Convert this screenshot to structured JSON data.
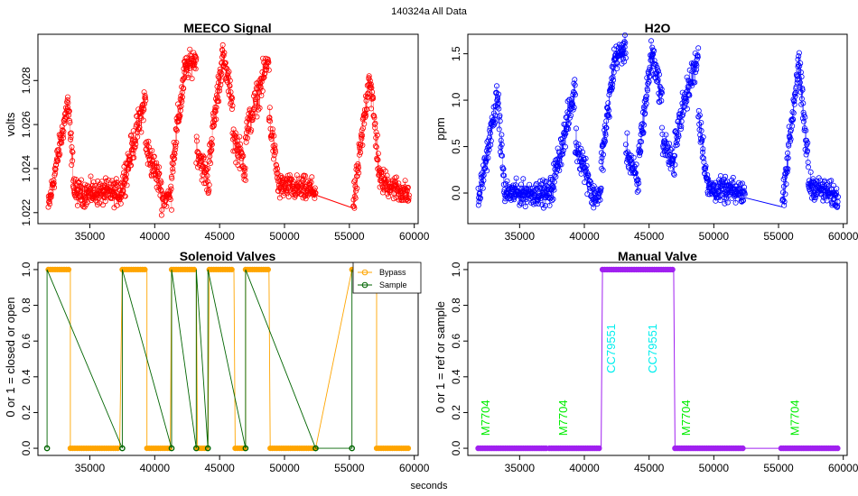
{
  "figure": {
    "title": "140324a   All Data",
    "xlabel": "seconds"
  },
  "chart_data": [
    {
      "id": "meeco",
      "type": "scatter",
      "title": "MEECO Signal",
      "xlabel": "",
      "ylabel": "volts",
      "color": "#ff0000",
      "xlim": [
        31000,
        60300
      ],
      "ylim": [
        1.0215,
        1.0301
      ],
      "xticks": [
        35000,
        40000,
        45000,
        50000,
        55000,
        60000
      ],
      "yticks": [
        1.022,
        1.024,
        1.026,
        1.028
      ],
      "ytick_labels": [
        "1.022",
        "1.024",
        "1.026",
        "1.028"
      ],
      "segments": [
        {
          "x0": 31800,
          "x1": 33300,
          "y0": 1.0222,
          "y1": 1.027,
          "noise": 0.0004,
          "n": 70
        },
        {
          "x0": 33300,
          "x1": 33800,
          "y0": 1.027,
          "y1": 1.0232,
          "noise": 0.0005,
          "n": 22
        },
        {
          "x0": 33800,
          "x1": 37300,
          "y0": 1.0229,
          "y1": 1.0229,
          "noise": 0.0004,
          "n": 150
        },
        {
          "x0": 37300,
          "x1": 39300,
          "y0": 1.0228,
          "y1": 1.0272,
          "noise": 0.0005,
          "n": 90
        },
        {
          "x0": 39300,
          "x1": 40500,
          "y0": 1.025,
          "y1": 1.0232,
          "noise": 0.0005,
          "n": 50
        },
        {
          "x0": 40500,
          "x1": 41300,
          "y0": 1.0226,
          "y1": 1.0228,
          "noise": 0.0004,
          "n": 30
        },
        {
          "x0": 41300,
          "x1": 42300,
          "y0": 1.024,
          "y1": 1.0283,
          "noise": 0.0005,
          "n": 50
        },
        {
          "x0": 42300,
          "x1": 43200,
          "y0": 1.0285,
          "y1": 1.029,
          "noise": 0.0004,
          "n": 45
        },
        {
          "x0": 43200,
          "x1": 44200,
          "y0": 1.025,
          "y1": 1.0232,
          "noise": 0.0005,
          "n": 40
        },
        {
          "x0": 44200,
          "x1": 45200,
          "y0": 1.0245,
          "y1": 1.029,
          "noise": 0.0005,
          "n": 50
        },
        {
          "x0": 45200,
          "x1": 46000,
          "y0": 1.0292,
          "y1": 1.027,
          "noise": 0.0004,
          "n": 35
        },
        {
          "x0": 46000,
          "x1": 47000,
          "y0": 1.0255,
          "y1": 1.024,
          "noise": 0.0005,
          "n": 40
        },
        {
          "x0": 47000,
          "x1": 48800,
          "y0": 1.0255,
          "y1": 1.029,
          "noise": 0.0005,
          "n": 75
        },
        {
          "x0": 48800,
          "x1": 49500,
          "y0": 1.0265,
          "y1": 1.0235,
          "noise": 0.0005,
          "n": 30
        },
        {
          "x0": 49500,
          "x1": 52400,
          "y0": 1.0232,
          "y1": 1.023,
          "noise": 0.0004,
          "n": 120
        },
        {
          "x0": 55300,
          "x1": 56500,
          "y0": 1.0222,
          "y1": 1.028,
          "noise": 0.0005,
          "n": 55
        },
        {
          "x0": 56500,
          "x1": 57300,
          "y0": 1.0285,
          "y1": 1.024,
          "noise": 0.0006,
          "n": 35
        },
        {
          "x0": 57300,
          "x1": 59600,
          "y0": 1.0235,
          "y1": 1.0228,
          "noise": 0.0004,
          "n": 100
        }
      ],
      "bridge": {
        "x": [
          52400,
          55300
        ],
        "y": [
          1.0228,
          1.0222
        ]
      }
    },
    {
      "id": "h2o",
      "type": "scatter",
      "title": "H2O",
      "xlabel": "",
      "ylabel": "ppm",
      "color": "#0000ff",
      "xlim": [
        31000,
        60300
      ],
      "ylim": [
        -0.33,
        1.71
      ],
      "xticks": [
        35000,
        40000,
        45000,
        50000,
        55000,
        60000
      ],
      "yticks": [
        0.0,
        0.5,
        1.0,
        1.5
      ],
      "ytick_labels": [
        "0.0",
        "0.5",
        "1.0",
        "1.5"
      ],
      "segments": [
        {
          "x0": 31800,
          "x1": 33300,
          "y0": -0.1,
          "y1": 1.05,
          "noise": 0.1,
          "n": 70
        },
        {
          "x0": 33300,
          "x1": 33800,
          "y0": 1.05,
          "y1": 0.1,
          "noise": 0.12,
          "n": 22
        },
        {
          "x0": 33800,
          "x1": 37300,
          "y0": 0.0,
          "y1": 0.0,
          "noise": 0.09,
          "n": 150
        },
        {
          "x0": 37300,
          "x1": 39300,
          "y0": -0.05,
          "y1": 1.12,
          "noise": 0.12,
          "n": 90
        },
        {
          "x0": 39300,
          "x1": 40500,
          "y0": 0.55,
          "y1": 0.1,
          "noise": 0.12,
          "n": 50
        },
        {
          "x0": 40500,
          "x1": 41300,
          "y0": -0.05,
          "y1": 0.0,
          "noise": 0.09,
          "n": 30
        },
        {
          "x0": 41300,
          "x1": 42300,
          "y0": 0.3,
          "y1": 1.4,
          "noise": 0.12,
          "n": 50
        },
        {
          "x0": 42300,
          "x1": 43200,
          "y0": 1.45,
          "y1": 1.55,
          "noise": 0.09,
          "n": 45
        },
        {
          "x0": 43200,
          "x1": 44200,
          "y0": 0.5,
          "y1": 0.05,
          "noise": 0.12,
          "n": 40
        },
        {
          "x0": 44200,
          "x1": 45200,
          "y0": 0.4,
          "y1": 1.5,
          "noise": 0.12,
          "n": 50
        },
        {
          "x0": 45200,
          "x1": 46000,
          "y0": 1.55,
          "y1": 1.0,
          "noise": 0.1,
          "n": 35
        },
        {
          "x0": 46000,
          "x1": 47000,
          "y0": 0.6,
          "y1": 0.25,
          "noise": 0.12,
          "n": 40
        },
        {
          "x0": 47000,
          "x1": 48800,
          "y0": 0.6,
          "y1": 1.5,
          "noise": 0.12,
          "n": 75
        },
        {
          "x0": 48800,
          "x1": 49500,
          "y0": 0.9,
          "y1": 0.1,
          "noise": 0.12,
          "n": 30
        },
        {
          "x0": 49500,
          "x1": 52400,
          "y0": 0.05,
          "y1": 0.0,
          "noise": 0.09,
          "n": 120
        },
        {
          "x0": 55300,
          "x1": 56500,
          "y0": -0.1,
          "y1": 1.35,
          "noise": 0.12,
          "n": 55
        },
        {
          "x0": 56500,
          "x1": 57300,
          "y0": 1.45,
          "y1": 0.3,
          "noise": 0.14,
          "n": 35
        },
        {
          "x0": 57300,
          "x1": 59600,
          "y0": 0.1,
          "y1": -0.05,
          "noise": 0.09,
          "n": 100
        }
      ],
      "bridge": {
        "x": [
          52400,
          55300
        ],
        "y": [
          -0.05,
          -0.15
        ]
      }
    },
    {
      "id": "solenoid",
      "type": "line",
      "title": "Solenoid Valves",
      "xlabel": "",
      "ylabel": "0 or 1 = closed or open",
      "xlim": [
        31000,
        60300
      ],
      "ylim": [
        -0.04,
        1.04
      ],
      "xticks": [
        35000,
        40000,
        45000,
        50000,
        55000,
        60000
      ],
      "yticks": [
        0.0,
        0.2,
        0.4,
        0.6,
        0.8,
        1.0
      ],
      "ytick_labels": [
        "0.0",
        "0.2",
        "0.4",
        "0.6",
        "0.8",
        "1.0"
      ],
      "legend": {
        "position": "top-right",
        "entries": [
          "Bypass",
          "Sample"
        ]
      },
      "series": [
        {
          "name": "Bypass",
          "color": "#ffa500",
          "x": [
            31800,
            33500,
            33500,
            37300,
            37500,
            39400,
            39400,
            41200,
            41300,
            43200,
            43300,
            44100,
            44200,
            46100,
            46200,
            47000,
            47000,
            48800,
            48900,
            52400,
            55200,
            57100,
            57100,
            59700
          ],
          "y": [
            1,
            1,
            0,
            0,
            1,
            1,
            0,
            0,
            1,
            1,
            0,
            0,
            1,
            1,
            0,
            0,
            1,
            1,
            0,
            0,
            1,
            1,
            0,
            0
          ]
        },
        {
          "name": "Sample",
          "color": "#006400",
          "x": [
            31700,
            31700,
            37500,
            37500,
            41300,
            41300,
            43200,
            43200,
            44100,
            44100,
            47000,
            47000,
            52400,
            55200,
            55200
          ],
          "y": [
            0,
            1,
            0,
            1,
            0,
            1,
            0,
            1,
            0,
            1,
            0,
            1,
            0,
            0,
            1
          ]
        }
      ]
    },
    {
      "id": "manual",
      "type": "line",
      "title": "Manual Valve",
      "xlabel": "",
      "ylabel": "0 or 1 = ref or sample",
      "color": "#a020f0",
      "xlim": [
        31000,
        60300
      ],
      "ylim": [
        -0.04,
        1.04
      ],
      "xticks": [
        35000,
        40000,
        45000,
        50000,
        55000,
        60000
      ],
      "yticks": [
        0.0,
        0.2,
        0.4,
        0.6,
        0.8,
        1.0
      ],
      "ytick_labels": [
        "0.0",
        "0.2",
        "0.4",
        "0.6",
        "0.8",
        "1.0"
      ],
      "x": [
        31800,
        37200,
        37300,
        41300,
        41400,
        46900,
        47000,
        52400,
        55200,
        59700
      ],
      "y": [
        0,
        0,
        0,
        0,
        1,
        1,
        0,
        0,
        0,
        0
      ],
      "annotations": [
        {
          "text": "M7704",
          "x": 32000,
          "y": 0.07,
          "color": "#00ee00"
        },
        {
          "text": "M7704",
          "x": 38000,
          "y": 0.07,
          "color": "#00ee00"
        },
        {
          "text": "CC79551",
          "x": 41700,
          "y": 0.42,
          "color": "#00eeee"
        },
        {
          "text": "CC79551",
          "x": 44900,
          "y": 0.42,
          "color": "#00eeee"
        },
        {
          "text": "M7704",
          "x": 47500,
          "y": 0.07,
          "color": "#00ee00"
        },
        {
          "text": "M7704",
          "x": 55900,
          "y": 0.07,
          "color": "#00ee00"
        }
      ]
    }
  ]
}
